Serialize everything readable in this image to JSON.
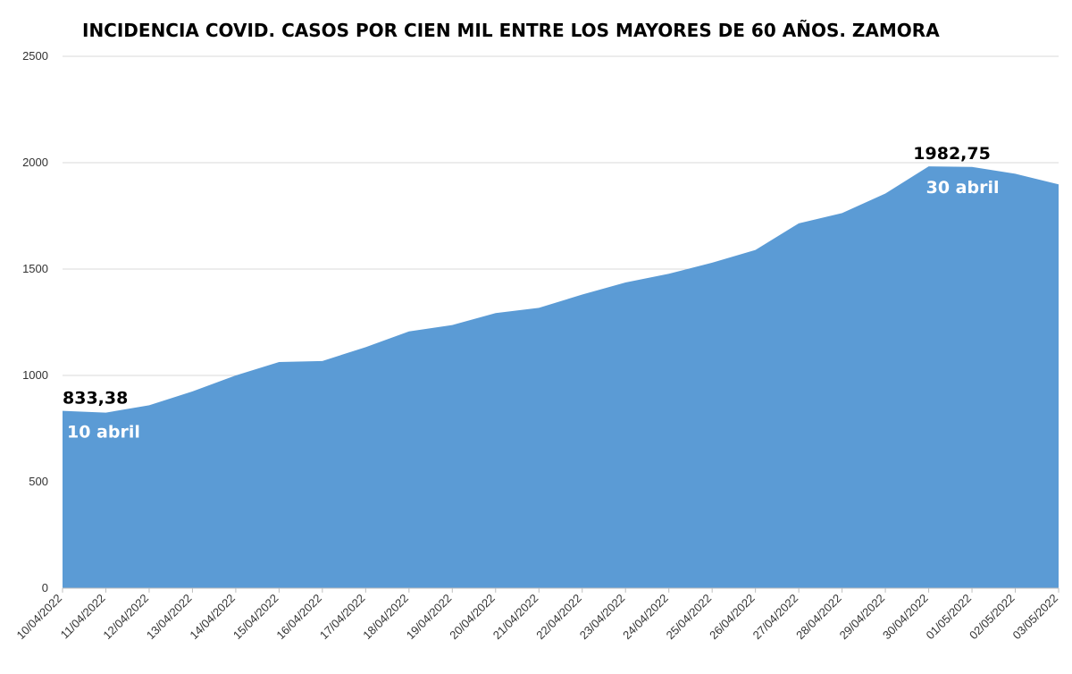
{
  "chart_data": {
    "type": "area",
    "title": "INCIDENCIA COVID. CASOS POR CIEN MIL ENTRE LOS MAYORES DE 60 AÑOS. ZAMORA",
    "xlabel": "",
    "ylabel": "",
    "ylim": [
      0,
      2500
    ],
    "yticks": [
      "0",
      "500",
      "1000",
      "1500",
      "2000",
      "2500"
    ],
    "grid": true,
    "legend": "none",
    "categories": [
      "10/04/2022",
      "11/04/2022",
      "12/04/2022",
      "13/04/2022",
      "14/04/2022",
      "15/04/2022",
      "16/04/2022",
      "17/04/2022",
      "18/04/2022",
      "19/04/2022",
      "20/04/2022",
      "21/04/2022",
      "22/04/2022",
      "23/04/2022",
      "24/04/2022",
      "25/04/2022",
      "26/04/2022",
      "27/04/2022",
      "28/04/2022",
      "29/04/2022",
      "30/04/2022",
      "01/05/2022",
      "02/05/2022",
      "03/05/2022"
    ],
    "series": [
      {
        "values": [
          833.38,
          825,
          860,
          925,
          1000,
          1063,
          1068,
          1133,
          1207,
          1237,
          1293,
          1318,
          1380,
          1437,
          1478,
          1530,
          1590,
          1715,
          1763,
          1855,
          1982.75,
          1980,
          1948,
          1898
        ]
      }
    ],
    "annotations": [
      {
        "index": 0,
        "value_label": "833,38",
        "date_label": "10 abril"
      },
      {
        "index": 20,
        "value_label": "1982,75",
        "date_label": "30 abril"
      }
    ]
  },
  "colors": {
    "area": "#5b9bd5",
    "grid": "#d9d9d9",
    "axis": "#bfbfbf"
  }
}
